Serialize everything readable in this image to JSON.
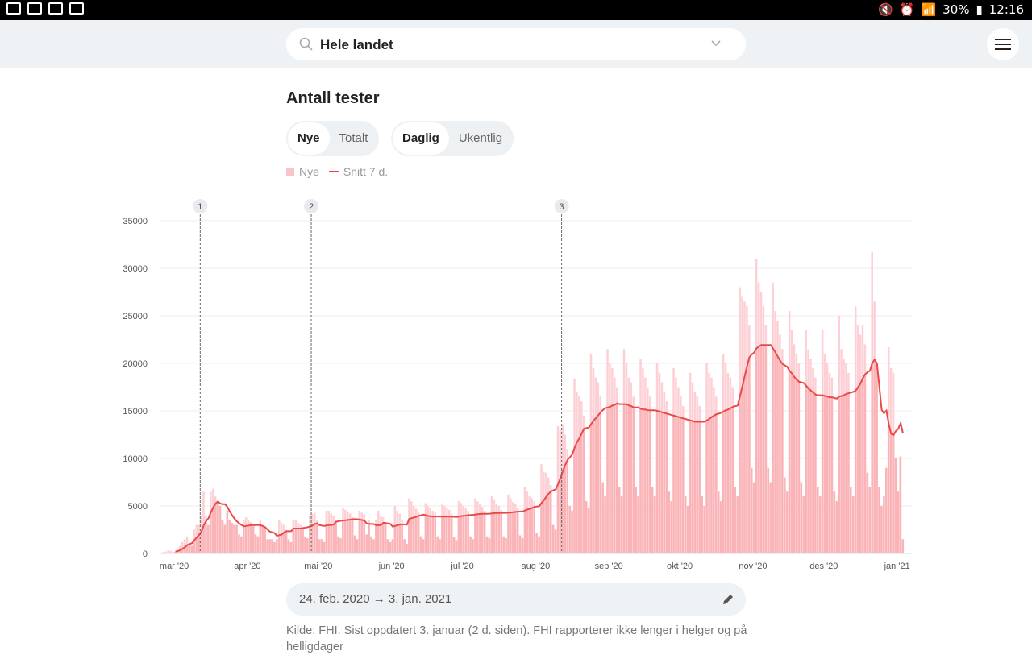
{
  "status_bar": {
    "battery": "30%",
    "time": "12:16",
    "icons": [
      "image-icon",
      "mail-at-icon",
      "gb-icon",
      "mail-icon",
      "mute-icon",
      "alarm-icon",
      "wifi-icon",
      "signal-icon",
      "battery-charging-icon"
    ]
  },
  "header": {
    "search_value": "Hele landet",
    "menu_icon": "hamburger-icon"
  },
  "title": "Antall tester",
  "toggle_mode": {
    "options": [
      "Nye",
      "Totalt"
    ],
    "selected": "Nye"
  },
  "toggle_period": {
    "options": [
      "Daglig",
      "Ukentlig"
    ],
    "selected": "Daglig"
  },
  "legend": {
    "bars": "Nye",
    "line": "Snitt 7 d."
  },
  "range": {
    "text": "24. feb. 2020 → 3. jan. 2021"
  },
  "source": "Kilde: FHI. Sist oppdatert 3. januar (2 d. siden). FHI rapporterer ikke lenger i helger og på helligdager",
  "colors": {
    "bar": "#fdd0d5",
    "bar_under_avg": "#fab4b8",
    "line": "#e84a4a"
  },
  "chart_data": {
    "type": "bar+line",
    "x_start": "2020-02-24",
    "x_end": "2021-01-03",
    "ylim": [
      0,
      35000
    ],
    "yticks": [
      0,
      5000,
      10000,
      15000,
      20000,
      25000,
      30000,
      35000
    ],
    "xtick_labels": [
      "mar '20",
      "apr '20",
      "mai '20",
      "jun '20",
      "jul '20",
      "aug '20",
      "sep '20",
      "okt '20",
      "nov '20",
      "des '20",
      "jan '21"
    ],
    "xtick_dates": [
      "2020-03-01",
      "2020-04-01",
      "2020-05-01",
      "2020-06-01",
      "2020-07-01",
      "2020-08-01",
      "2020-09-01",
      "2020-10-01",
      "2020-11-01",
      "2020-12-01",
      "2021-01-01"
    ],
    "markers": [
      {
        "label": "1",
        "date": "2020-03-12"
      },
      {
        "label": "2",
        "date": "2020-04-28"
      },
      {
        "label": "3",
        "date": "2020-08-12"
      }
    ],
    "series": [
      {
        "name": "Nye",
        "type": "bar",
        "values": [
          100,
          150,
          200,
          300,
          300,
          200,
          150,
          500,
          800,
          1200,
          1500,
          1800,
          1000,
          800,
          2500,
          3000,
          3000,
          4000,
          6500,
          4000,
          3000,
          6500,
          6800,
          6000,
          5500,
          5000,
          3500,
          3000,
          4500,
          3500,
          3200,
          3000,
          3000,
          2000,
          1800,
          3500,
          3800,
          3500,
          3300,
          3000,
          2000,
          1800,
          3500,
          3000,
          2800,
          1500,
          1500,
          1500,
          1200,
          1500,
          3500,
          3200,
          3000,
          2500,
          1500,
          1200,
          3500,
          3500,
          3200,
          3000,
          2800,
          1800,
          1600,
          4000,
          4200,
          4300,
          3500,
          1500,
          1500,
          1200,
          4500,
          4500,
          4200,
          4000,
          3500,
          1800,
          1600,
          4800,
          4600,
          4400,
          4200,
          3800,
          1900,
          1500,
          4500,
          4300,
          4100,
          2000,
          3500,
          1800,
          1500,
          3500,
          4500,
          4000,
          3800,
          3300,
          1500,
          1200,
          1500,
          5000,
          4500,
          4200,
          3500,
          1500,
          1000,
          5800,
          5500,
          5000,
          4700,
          4300,
          1800,
          1500,
          5300,
          5000,
          4800,
          4500,
          4300,
          1800,
          1500,
          5200,
          5000,
          4800,
          4600,
          4200,
          1700,
          1400,
          5500,
          5300,
          5000,
          4800,
          4500,
          1800,
          1500,
          5800,
          5500,
          5200,
          4900,
          4500,
          1800,
          1600,
          6000,
          5700,
          5200,
          5000,
          4600,
          1800,
          1600,
          6200,
          5800,
          5400,
          5200,
          4800,
          1900,
          1600,
          7000,
          6500,
          6000,
          5800,
          5500,
          2200,
          1800,
          9400,
          8600,
          8500,
          8000,
          7200,
          3000,
          2500,
          13400,
          13000,
          13500,
          12500,
          11000,
          5000,
          4500,
          18400,
          17000,
          16500,
          16000,
          14500,
          5500,
          4800,
          21000,
          19500,
          18500,
          18000,
          16500,
          7500,
          6000,
          21500,
          20000,
          19500,
          18500,
          17500,
          7000,
          6000,
          21500,
          20000,
          18500,
          18000,
          16500,
          7000,
          6000,
          20500,
          19500,
          18500,
          17500,
          16500,
          7000,
          6000,
          20000,
          19000,
          18000,
          17000,
          16000,
          6500,
          5500,
          19500,
          18500,
          17500,
          16500,
          15500,
          6000,
          5000,
          19000,
          18000,
          17000,
          16500,
          15500,
          6000,
          5000,
          20000,
          19000,
          18500,
          17500,
          16500,
          6500,
          5500,
          21000,
          20000,
          19000,
          18500,
          17500,
          7000,
          6000,
          28000,
          27000,
          26500,
          26000,
          24000,
          9000,
          7500,
          31000,
          28500,
          27500,
          26000,
          24000,
          9000,
          7500,
          28500,
          25500,
          24500,
          23000,
          21500,
          8000,
          6500,
          25500,
          23500,
          22000,
          21000,
          20000,
          7500,
          6000,
          23500,
          21500,
          20500,
          19500,
          18500,
          7000,
          6000,
          23500,
          21000,
          20000,
          19000,
          18500,
          6500,
          5500,
          25000,
          21500,
          20500,
          20000,
          19000,
          7000,
          6000,
          26000,
          24000,
          23000,
          24000,
          22000,
          8500,
          7000,
          31700,
          26500,
          20000,
          7000,
          5000,
          6000,
          9000,
          21700,
          19500,
          19000,
          10000,
          6500,
          10200,
          1500
        ]
      },
      {
        "name": "Snitt 7 d.",
        "type": "line",
        "derived": "7-day average of Nye"
      }
    ]
  }
}
